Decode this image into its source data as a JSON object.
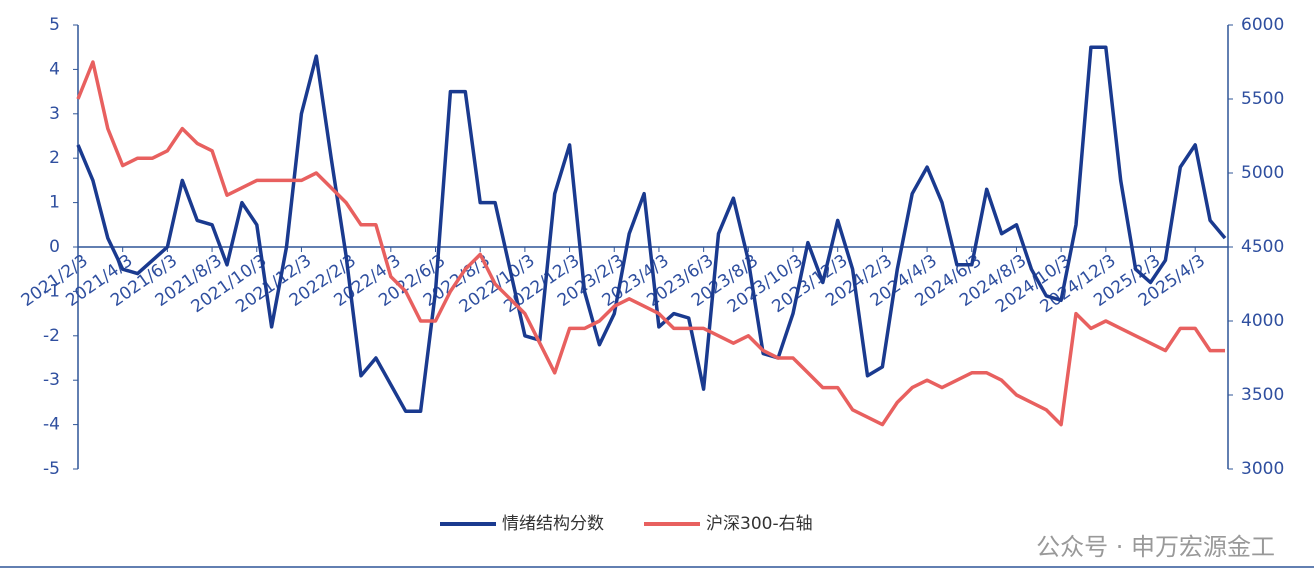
{
  "chart_data": {
    "type": "line",
    "categories": [
      "2021/2/3",
      null,
      null,
      "2021/4/3",
      null,
      null,
      "2021/6/3",
      null,
      null,
      "2021/8/3",
      null,
      null,
      "2021/10/3",
      null,
      null,
      "2021/12/3",
      null,
      null,
      "2022/2/3",
      null,
      null,
      "2022/4/3",
      null,
      null,
      "2022/6/3",
      null,
      null,
      "2022/8/3",
      null,
      null,
      "2022/10/3",
      null,
      null,
      "2022/12/3",
      null,
      null,
      "2023/2/3",
      null,
      null,
      "2023/4/3",
      null,
      null,
      "2023/6/3",
      null,
      null,
      "2023/8/3",
      null,
      null,
      "2023/10/3",
      null,
      null,
      "2023/12/3",
      null,
      null,
      "2024/2/3",
      null,
      null,
      "2024/4/3",
      null,
      null,
      "2024/6/3",
      null,
      null,
      "2024/8/3",
      null,
      null,
      "2024/10/3",
      null,
      null,
      "2024/12/3",
      null,
      null,
      "2025/2/3",
      null,
      null,
      "2025/4/3",
      null,
      null
    ],
    "series": [
      {
        "name": "情绪结构分数",
        "color": "#1a3a8f",
        "axis": "y",
        "values": [
          2.3,
          1.5,
          0.2,
          -0.5,
          -0.6,
          -0.3,
          0.0,
          1.5,
          0.6,
          0.5,
          -0.4,
          1.0,
          0.5,
          -1.8,
          0.0,
          3.0,
          4.3,
          2.0,
          -0.2,
          -2.9,
          -2.5,
          -3.1,
          -3.7,
          -3.7,
          -1.0,
          3.5,
          3.5,
          1.0,
          1.0,
          -0.5,
          -2.0,
          -2.1,
          1.2,
          2.3,
          -1.0,
          -2.2,
          -1.5,
          0.3,
          1.2,
          -1.8,
          -1.5,
          -1.6,
          -3.2,
          0.3,
          1.1,
          -0.3,
          -2.4,
          -2.5,
          -1.5,
          0.1,
          -0.8,
          0.6,
          -0.5,
          -2.9,
          -2.7,
          -0.5,
          1.2,
          1.8,
          1.0,
          -0.4,
          -0.4,
          1.3,
          0.3,
          0.5,
          -0.5,
          -1.1,
          -1.2,
          0.5,
          4.5,
          4.5,
          1.5,
          -0.5,
          -0.8,
          -0.3,
          1.8,
          2.3,
          0.6,
          0.2
        ]
      },
      {
        "name": "沪深300-右轴",
        "color": "#e8605f",
        "axis": "y2",
        "values": [
          5500,
          5750,
          5300,
          5050,
          5100,
          5100,
          5150,
          5300,
          5200,
          5150,
          4850,
          4900,
          4950,
          4950,
          4950,
          4950,
          5000,
          4900,
          4800,
          4650,
          4650,
          4300,
          4200,
          4000,
          4000,
          4200,
          4350,
          4450,
          4250,
          4150,
          4050,
          3850,
          3650,
          3950,
          3950,
          4000,
          4100,
          4150,
          4100,
          4050,
          3950,
          3950,
          3950,
          3900,
          3850,
          3900,
          3800,
          3750,
          3750,
          3650,
          3550,
          3550,
          3400,
          3350,
          3300,
          3450,
          3550,
          3600,
          3550,
          3600,
          3650,
          3650,
          3600,
          3500,
          3450,
          3400,
          3300,
          4050,
          3950,
          4000,
          3950,
          3900,
          3850,
          3800,
          3950,
          3950,
          3800,
          3800
        ]
      }
    ],
    "ylim": [
      -5,
      5
    ],
    "yticks": [
      -5,
      -4,
      -3,
      -2,
      -1,
      0,
      1,
      2,
      3,
      4,
      5
    ],
    "y2lim": [
      3000,
      6000
    ],
    "y2ticks": [
      3000,
      3500,
      4000,
      4500,
      5000,
      5500,
      6000
    ],
    "legend": "bottom",
    "watermark": "公众号 · 申万宏源金工"
  }
}
